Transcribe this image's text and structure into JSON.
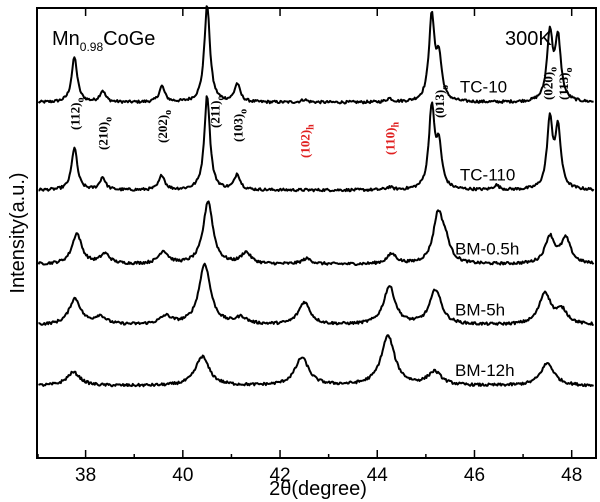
{
  "chart_data": {
    "type": "line",
    "title": "Mn0.98CoGe",
    "title_main": "Mn",
    "title_sub": "0.98",
    "title_rest": "CoGe",
    "temperature": "300K",
    "xlabel": "2θ(degree)",
    "ylabel": "Intensity(a.u.)",
    "xlim": [
      37,
      48.5
    ],
    "ylim": [
      0,
      1
    ],
    "xticks": [
      "38",
      "40",
      "42",
      "44",
      "46",
      "48"
    ],
    "x_values": [
      38,
      40,
      42,
      44,
      46,
      48
    ],
    "colors": {
      "orthorhombic": "#000000",
      "hexagonal": "#e02020"
    },
    "series": [
      {
        "name": "TC-10",
        "baseline": 0.79,
        "peaks": [
          {
            "x": 37.77,
            "h": 0.1
          },
          {
            "x": 38.35,
            "h": 0.025
          },
          {
            "x": 39.57,
            "h": 0.035
          },
          {
            "x": 40.5,
            "h": 0.215
          },
          {
            "x": 41.12,
            "h": 0.04
          },
          {
            "x": 42.5,
            "h": 0.006
          },
          {
            "x": 44.25,
            "h": 0.008
          },
          {
            "x": 45.12,
            "h": 0.185
          },
          {
            "x": 45.27,
            "h": 0.09
          },
          {
            "x": 47.55,
            "h": 0.15
          },
          {
            "x": 47.72,
            "h": 0.135
          }
        ]
      },
      {
        "name": "TC-110",
        "baseline": 0.595,
        "peaks": [
          {
            "x": 37.77,
            "h": 0.095
          },
          {
            "x": 38.35,
            "h": 0.028
          },
          {
            "x": 39.57,
            "h": 0.033
          },
          {
            "x": 40.5,
            "h": 0.21
          },
          {
            "x": 41.12,
            "h": 0.035
          },
          {
            "x": 44.25,
            "h": 0.006
          },
          {
            "x": 45.12,
            "h": 0.18
          },
          {
            "x": 45.27,
            "h": 0.09
          },
          {
            "x": 46.45,
            "h": 0.01
          },
          {
            "x": 47.55,
            "h": 0.15
          },
          {
            "x": 47.72,
            "h": 0.13
          }
        ]
      },
      {
        "name": "BM-0.5h",
        "baseline": 0.43,
        "peaks": [
          {
            "x": 37.82,
            "h": 0.068
          },
          {
            "x": 38.4,
            "h": 0.022
          },
          {
            "x": 39.6,
            "h": 0.028
          },
          {
            "x": 40.52,
            "h": 0.14
          },
          {
            "x": 41.3,
            "h": 0.025
          },
          {
            "x": 42.55,
            "h": 0.012
          },
          {
            "x": 44.3,
            "h": 0.022
          },
          {
            "x": 45.25,
            "h": 0.105
          },
          {
            "x": 45.4,
            "h": 0.04
          },
          {
            "x": 47.55,
            "h": 0.06
          },
          {
            "x": 47.88,
            "h": 0.055
          }
        ]
      },
      {
        "name": "BM-5h",
        "baseline": 0.295,
        "peaks": [
          {
            "x": 37.78,
            "h": 0.058
          },
          {
            "x": 38.3,
            "h": 0.018
          },
          {
            "x": 39.65,
            "h": 0.018
          },
          {
            "x": 40.45,
            "h": 0.135
          },
          {
            "x": 41.2,
            "h": 0.015
          },
          {
            "x": 42.5,
            "h": 0.05
          },
          {
            "x": 44.25,
            "h": 0.085
          },
          {
            "x": 45.2,
            "h": 0.078
          },
          {
            "x": 47.45,
            "h": 0.07
          },
          {
            "x": 47.8,
            "h": 0.03
          }
        ]
      },
      {
        "name": "BM-12h",
        "baseline": 0.16,
        "peaks": [
          {
            "x": 37.75,
            "h": 0.03
          },
          {
            "x": 40.4,
            "h": 0.065
          },
          {
            "x": 42.45,
            "h": 0.062
          },
          {
            "x": 44.22,
            "h": 0.11
          },
          {
            "x": 45.18,
            "h": 0.03
          },
          {
            "x": 47.5,
            "h": 0.05
          }
        ]
      }
    ],
    "peak_labels": [
      {
        "text": "(112)",
        "sub": "o",
        "x": 37.77,
        "phase": "orthorhombic"
      },
      {
        "text": "(210)",
        "sub": "o",
        "x": 38.35,
        "phase": "orthorhombic"
      },
      {
        "text": "(202)",
        "sub": "o",
        "x": 39.57,
        "phase": "orthorhombic"
      },
      {
        "text": "(211)",
        "sub": "o",
        "x": 40.65,
        "phase": "orthorhombic"
      },
      {
        "text": "(103)",
        "sub": "o",
        "x": 41.12,
        "phase": "orthorhombic"
      },
      {
        "text": "(102)",
        "sub": "h",
        "x": 42.5,
        "phase": "hexagonal"
      },
      {
        "text": "(110)",
        "sub": "h",
        "x": 44.25,
        "phase": "hexagonal"
      },
      {
        "text": "(013)",
        "sub": "o",
        "x": 45.27,
        "phase": "orthorhombic"
      },
      {
        "text": "(020)",
        "sub": "o",
        "x": 47.5,
        "phase": "orthorhombic"
      },
      {
        "text": "(113)",
        "sub": "o",
        "x": 47.82,
        "phase": "orthorhombic"
      }
    ]
  }
}
